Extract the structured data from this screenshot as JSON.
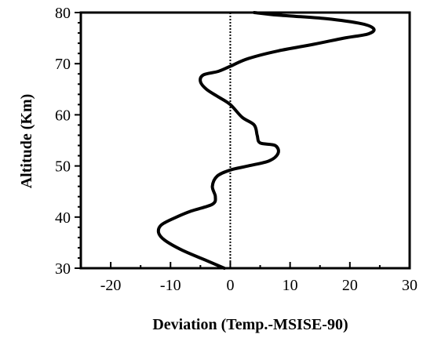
{
  "chart_data": {
    "type": "line",
    "title": "",
    "xlabel": "Deviation (Temp.-MSISE-90)",
    "ylabel": "Altitude (Km)",
    "xlim": [
      -25,
      30
    ],
    "ylim": [
      30,
      80
    ],
    "x_ticks": [
      -20,
      -10,
      0,
      10,
      20,
      30
    ],
    "x_tick_labels": [
      "-20",
      "-10",
      "0",
      "10",
      "20",
      "30"
    ],
    "y_ticks": [
      30,
      40,
      50,
      60,
      70,
      80
    ],
    "y_tick_labels": [
      "30",
      "40",
      "50",
      "60",
      "70",
      "80"
    ],
    "x_minor_step": 5,
    "y_minor_step": 2,
    "reference_line_x": 0,
    "grid": false,
    "legend": "none",
    "line_color": "#000000",
    "series": [
      {
        "x": [
          -1,
          -4,
          -8,
          -11,
          -12,
          -11.5,
          -9,
          -6.5,
          -3,
          -2.5,
          -3,
          -2.2,
          0,
          3,
          6.5,
          8,
          7.5,
          5,
          4.5,
          4,
          2,
          0,
          -2,
          -4,
          -5,
          -4.5,
          -2,
          0,
          3,
          8,
          14,
          19,
          23,
          24,
          22,
          16,
          8,
          4
        ],
        "y": [
          30,
          31.5,
          33.5,
          35.5,
          37,
          38.5,
          40,
          41.2,
          42.5,
          44,
          46,
          48,
          49.2,
          50,
          51,
          52.5,
          54,
          54.5,
          56,
          58,
          59.5,
          62,
          63.5,
          65,
          66.5,
          67.8,
          68.5,
          69.5,
          71,
          72.5,
          73.8,
          75,
          75.8,
          76.8,
          77.8,
          78.8,
          79.5,
          80
        ]
      }
    ]
  }
}
